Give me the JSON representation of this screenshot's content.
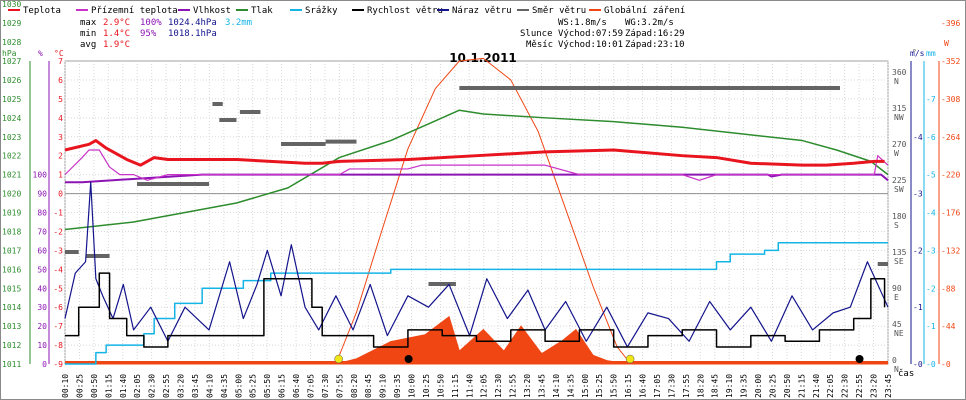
{
  "chart_data": {
    "type": "line",
    "title": "10.1.2011",
    "legend": [
      {
        "name": "Teplota",
        "color": "#e8141e"
      },
      {
        "name": "Přízemní teplota",
        "color": "#c832c8"
      },
      {
        "name": "Vlhkost",
        "color": "#8c14b4"
      },
      {
        "name": "Tlak",
        "color": "#2d8c2d"
      },
      {
        "name": "Srážky",
        "color": "#14b4e6"
      },
      {
        "name": "Rychlost větru",
        "color": "#000000"
      },
      {
        "name": "Náraz větru",
        "color": "#14148c"
      },
      {
        "name": "Směr větru",
        "color": "#646464"
      },
      {
        "name": "Globální záření",
        "color": "#f04614"
      }
    ],
    "stats": [
      {
        "label": "max",
        "temp": "2.9°C",
        "hum": "100%",
        "press": "1024.4hPa",
        "rain": "3.2mm"
      },
      {
        "label": "min",
        "temp": "1.4°C",
        "hum": "95%",
        "press": "1018.1hPa",
        "rain": ""
      },
      {
        "label": "avg",
        "temp": "1.9°C",
        "hum": "",
        "press": "",
        "rain": ""
      }
    ],
    "info": {
      "ws": "WS:1.8m/s",
      "wg": "WG:3.2m/s",
      "sun_label": "Slunce",
      "sunrise": "Východ:07:59",
      "sunset": "Západ:16:29",
      "moon_label": "Měsíc",
      "moonrise": "Východ:10:01",
      "moonset": "Západ:23:10"
    },
    "axes": {
      "hpa": {
        "unit": "hPa",
        "ticks": [
          "1011",
          "1012",
          "1013",
          "1014",
          "1015",
          "1016",
          "1017",
          "1018",
          "1019",
          "1020",
          "1021",
          "1022",
          "1023",
          "1024",
          "1025",
          "1026",
          "1027",
          "1028",
          "1029",
          "1030",
          "1031"
        ]
      },
      "pct": {
        "unit": "%",
        "ticks": [
          "0",
          "10",
          "20",
          "30",
          "40",
          "50",
          "60",
          "70",
          "80",
          "90",
          "100"
        ]
      },
      "temp": {
        "unit": "°C",
        "ticks": [
          "-9",
          "-8",
          "-7",
          "-6",
          "-5",
          "-4",
          "-3",
          "-2",
          "-1",
          "0",
          "1",
          "2",
          "3",
          "4",
          "5",
          "6",
          "7"
        ]
      },
      "dir": {
        "unit": "°",
        "ticks": [
          "0",
          "45",
          "90",
          "135",
          "180",
          "225",
          "270",
          "315",
          "360"
        ],
        "cardinal": [
          "N",
          "NE",
          "E",
          "SE",
          "S",
          "SW",
          "W",
          "NW",
          "N"
        ]
      },
      "ms": {
        "unit": "m/s",
        "ticks": [
          "0",
          "1",
          "2",
          "3",
          "4"
        ]
      },
      "mm": {
        "unit": "mm",
        "ticks": [
          "0",
          "1",
          "2",
          "3",
          "4",
          "5",
          "6",
          "7"
        ]
      },
      "wm2": {
        "unit": "W/m²",
        "ticks": [
          "0",
          "44",
          "88",
          "132",
          "176",
          "220",
          "264",
          "308",
          "352",
          "396"
        ]
      },
      "x_unit": "čas",
      "x_ticks": [
        "00:10",
        "00:25",
        "00:50",
        "01:15",
        "01:40",
        "02:05",
        "02:30",
        "02:55",
        "03:20",
        "03:45",
        "04:10",
        "04:35",
        "05:00",
        "05:25",
        "05:50",
        "06:15",
        "06:40",
        "07:05",
        "07:30",
        "07:55",
        "08:20",
        "08:45",
        "09:10",
        "09:35",
        "10:00",
        "10:25",
        "10:50",
        "11:15",
        "11:40",
        "12:05",
        "12:30",
        "12:55",
        "13:20",
        "13:45",
        "14:10",
        "14:35",
        "15:00",
        "15:25",
        "15:50",
        "16:15",
        "16:40",
        "17:05",
        "17:30",
        "17:55",
        "18:20",
        "18:45",
        "19:10",
        "19:35",
        "20:00",
        "20:25",
        "20:50",
        "21:15",
        "21:40",
        "22:05",
        "22:30",
        "22:55",
        "23:20",
        "23:45"
      ]
    },
    "series": [
      {
        "name": "Teplota",
        "unit": "°C",
        "t": [
          0,
          0.7,
          0.9,
          1.2,
          1.8,
          2.2,
          2.6,
          3,
          5,
          7,
          7.5,
          8,
          10,
          12,
          14,
          16,
          18,
          19,
          20,
          21.5,
          22.2,
          23,
          23.6,
          23.9
        ],
        "values": [
          2.3,
          2.6,
          2.8,
          2.4,
          1.8,
          1.5,
          1.9,
          1.8,
          1.8,
          1.6,
          1.6,
          1.7,
          1.8,
          2.0,
          2.2,
          2.3,
          2.0,
          1.9,
          1.6,
          1.5,
          1.5,
          1.6,
          1.7,
          1.7
        ]
      },
      {
        "name": "Přízemní teplota",
        "unit": "°C",
        "t": [
          0,
          0.5,
          0.7,
          1.0,
          1.3,
          1.6,
          2.0,
          2.4,
          3,
          5,
          5.5,
          8,
          8.3,
          10,
          10.4,
          14,
          15,
          17,
          18,
          18.5,
          19,
          20,
          23.6,
          23.7,
          24
        ],
        "values": [
          1.0,
          1.9,
          2.3,
          2.3,
          1.4,
          1.0,
          1.0,
          0.7,
          1.0,
          1.0,
          1.0,
          1.0,
          1.3,
          1.3,
          1.5,
          1.5,
          1.0,
          1.0,
          1.0,
          0.7,
          1.0,
          1.0,
          1.0,
          2.0,
          1.5
        ]
      },
      {
        "name": "Vlhkost",
        "unit": "%",
        "t": [
          0,
          0.5,
          4,
          4.2,
          20.5,
          20.6,
          20.9,
          23.8,
          24
        ],
        "values": [
          96,
          96,
          100,
          100,
          100,
          99,
          100,
          100,
          97
        ]
      },
      {
        "name": "Tlak",
        "unit": "hPa",
        "t": [
          0,
          2,
          5,
          6.5,
          8,
          9.5,
          10.5,
          11.5,
          12.2,
          14,
          16,
          18,
          20,
          21.5,
          22.5,
          23.5,
          24
        ],
        "values": [
          1018.1,
          1018.5,
          1019.5,
          1020.3,
          1021.9,
          1022.8,
          1023.6,
          1024.4,
          1024.2,
          1024.0,
          1023.8,
          1023.5,
          1023.1,
          1022.8,
          1022.3,
          1021.7,
          1021.0
        ]
      },
      {
        "name": "Srážky",
        "unit": "mm",
        "t": [
          0,
          0.9,
          1.2,
          2.3,
          2.6,
          3.2,
          4,
          5.2,
          6,
          6.2,
          9,
          9.5,
          19,
          19.4,
          20.4,
          20.8,
          24
        ],
        "values": [
          0,
          0.3,
          0.5,
          0.8,
          1.2,
          1.6,
          2.0,
          2.2,
          2.4,
          2.4,
          2.4,
          2.5,
          2.7,
          2.9,
          3.0,
          3.2,
          3.2
        ]
      },
      {
        "name": "Rychlost větru",
        "unit": "m/s",
        "t": [
          0,
          0.4,
          0.8,
          1.0,
          1.3,
          1.8,
          2.3,
          3,
          4,
          5,
          5.8,
          6.5,
          7.2,
          7.5,
          8,
          9,
          10,
          11,
          12,
          13,
          14,
          15,
          16,
          17,
          18,
          19,
          20,
          21,
          22,
          23,
          23.5,
          23.9
        ],
        "values": [
          0.5,
          1,
          1,
          1.6,
          0.8,
          0.5,
          0.3,
          0.5,
          0.5,
          0.5,
          1.5,
          1.5,
          1,
          0.5,
          0.5,
          0.3,
          0.6,
          0.5,
          0.4,
          0.6,
          0.4,
          0.6,
          0.3,
          0.5,
          0.6,
          0.3,
          0.5,
          0.4,
          0.6,
          0.8,
          1.5,
          1
        ]
      },
      {
        "name": "Náraz větru",
        "unit": "m/s",
        "t": [
          0,
          0.3,
          0.6,
          0.75,
          0.9,
          1.1,
          1.4,
          1.7,
          2.0,
          2.5,
          3,
          3.5,
          4.2,
          4.8,
          5.2,
          5.6,
          5.9,
          6.3,
          6.6,
          7.0,
          7.4,
          7.9,
          8.4,
          8.9,
          9.4,
          10,
          10.6,
          11.2,
          11.8,
          12.3,
          12.9,
          13.5,
          14,
          14.6,
          15.2,
          15.8,
          16.4,
          17,
          17.6,
          18.2,
          18.8,
          19.4,
          20,
          20.6,
          21.2,
          21.8,
          22.4,
          22.9,
          23.4,
          23.7,
          24
        ],
        "values": [
          0.8,
          1.6,
          1.8,
          3.2,
          1.5,
          1.2,
          0.8,
          1.4,
          0.6,
          1,
          0.4,
          1,
          0.6,
          1.8,
          0.8,
          1.4,
          2,
          1.2,
          2.1,
          1,
          0.6,
          1.2,
          0.6,
          1.4,
          0.5,
          1.2,
          1,
          1.4,
          0.5,
          1.5,
          0.8,
          1.3,
          0.6,
          1.1,
          0.4,
          1,
          0.3,
          0.9,
          0.8,
          0.4,
          1.1,
          0.6,
          1,
          0.4,
          1.2,
          0.6,
          0.9,
          1,
          1.8,
          1.4,
          1
        ]
      },
      {
        "name": "Směr větru",
        "unit": "°",
        "segments": [
          {
            "t0": 0.0,
            "t1": 0.4,
            "v": 140
          },
          {
            "t0": 0.6,
            "v": 135,
            "t1": 1.3
          },
          {
            "t0": 2.1,
            "t1": 4.2,
            "v": 225
          },
          {
            "t0": 4.3,
            "t1": 4.6,
            "v": 325
          },
          {
            "t0": 4.5,
            "t1": 5.0,
            "v": 305
          },
          {
            "t0": 5.1,
            "t1": 5.7,
            "v": 315
          },
          {
            "t0": 6.3,
            "t1": 7.6,
            "v": 275
          },
          {
            "t0": 7.6,
            "t1": 8.5,
            "v": 278
          },
          {
            "t0": 10.6,
            "t1": 11.4,
            "v": 100
          },
          {
            "t0": 11.5,
            "t1": 22.6,
            "v": 345
          },
          {
            "t0": 23.7,
            "t1": 24,
            "v": 125
          }
        ]
      },
      {
        "name": "Globální záření",
        "unit": "W/m²",
        "t": [
          0,
          7.9,
          8.5,
          9.5,
          10.5,
          11.2,
          11.5,
          12.2,
          12.8,
          13.3,
          13.9,
          14.5,
          14.9,
          15.4,
          15.8,
          16.4,
          24
        ],
        "values": [
          0,
          0,
          6,
          26,
          34,
          55,
          15,
          40,
          15,
          44,
          12,
          27,
          40,
          10,
          4,
          0,
          0
        ]
      },
      {
        "name": "Teoretické záření",
        "unit": "W/m²",
        "t": [
          7.9,
          8.5,
          9.2,
          10,
          10.8,
          11.5,
          12.2,
          13,
          13.8,
          14.6,
          15.4,
          16.1,
          16.5
        ],
        "values": [
          0,
          60,
          150,
          250,
          320,
          352,
          355,
          330,
          270,
          180,
          90,
          20,
          0
        ]
      }
    ]
  }
}
